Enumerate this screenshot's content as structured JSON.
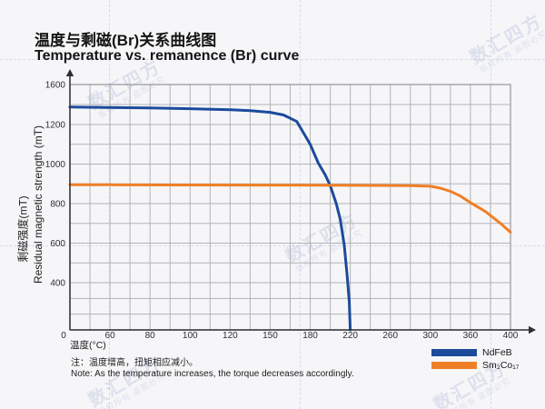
{
  "page": {
    "background": "#f6f6f8"
  },
  "header": {
    "title_zh": "温度与剩磁(Br)关系曲线图",
    "title_en": "Temperature vs. remanence (Br) curve"
  },
  "watermark": {
    "brand": "数汇四方",
    "notice": "版权所有 盗图必究"
  },
  "chart_data": {
    "type": "line",
    "title": "温度与剩磁(Br)关系曲线图 / Temperature vs. remanence (Br) curve",
    "xlabel": "温度(°C)",
    "ylabel_zh": "剩磁强度(mT)",
    "ylabel_en": "Residual magnetic strength (mT)",
    "x_ticks": [
      0,
      60,
      80,
      100,
      120,
      150,
      180,
      220,
      260,
      300,
      360,
      400
    ],
    "x_axis_note": "ticks equally spaced although values are non-linear (category-style axis)",
    "y_tick_labels": [
      1600,
      1200,
      1000,
      800,
      600,
      400
    ],
    "y_scale_ticks": [
      1600,
      1200,
      1000,
      800,
      600,
      400,
      0
    ],
    "ylim": [
      0,
      1600
    ],
    "grid": true,
    "legend_position": "bottom-right",
    "series": [
      {
        "name": "NdFeB",
        "color": "#1c4b9c",
        "points": [
          [
            0,
            1375
          ],
          [
            40,
            1372
          ],
          [
            80,
            1365
          ],
          [
            100,
            1358
          ],
          [
            120,
            1348
          ],
          [
            135,
            1338
          ],
          [
            150,
            1322
          ],
          [
            160,
            1295
          ],
          [
            170,
            1230
          ],
          [
            180,
            1100
          ],
          [
            188,
            1005
          ],
          [
            195,
            945
          ],
          [
            200,
            890
          ],
          [
            206,
            800
          ],
          [
            210,
            720
          ],
          [
            214,
            590
          ],
          [
            217,
            430
          ],
          [
            219,
            240
          ],
          [
            220,
            0
          ]
        ]
      },
      {
        "name": "Sm₂Co₁₇",
        "color": "#ef7f26",
        "points": [
          [
            0,
            895
          ],
          [
            60,
            895
          ],
          [
            120,
            894
          ],
          [
            180,
            893
          ],
          [
            240,
            892
          ],
          [
            280,
            891
          ],
          [
            300,
            888
          ],
          [
            315,
            878
          ],
          [
            330,
            862
          ],
          [
            345,
            838
          ],
          [
            360,
            805
          ],
          [
            375,
            760
          ],
          [
            390,
            700
          ],
          [
            400,
            655
          ]
        ]
      }
    ]
  },
  "notes": {
    "line1_zh": "注：温度增高，扭矩相应减小。",
    "line2_en": "Note: As the temperature increases, the torque decreases accordingly."
  }
}
